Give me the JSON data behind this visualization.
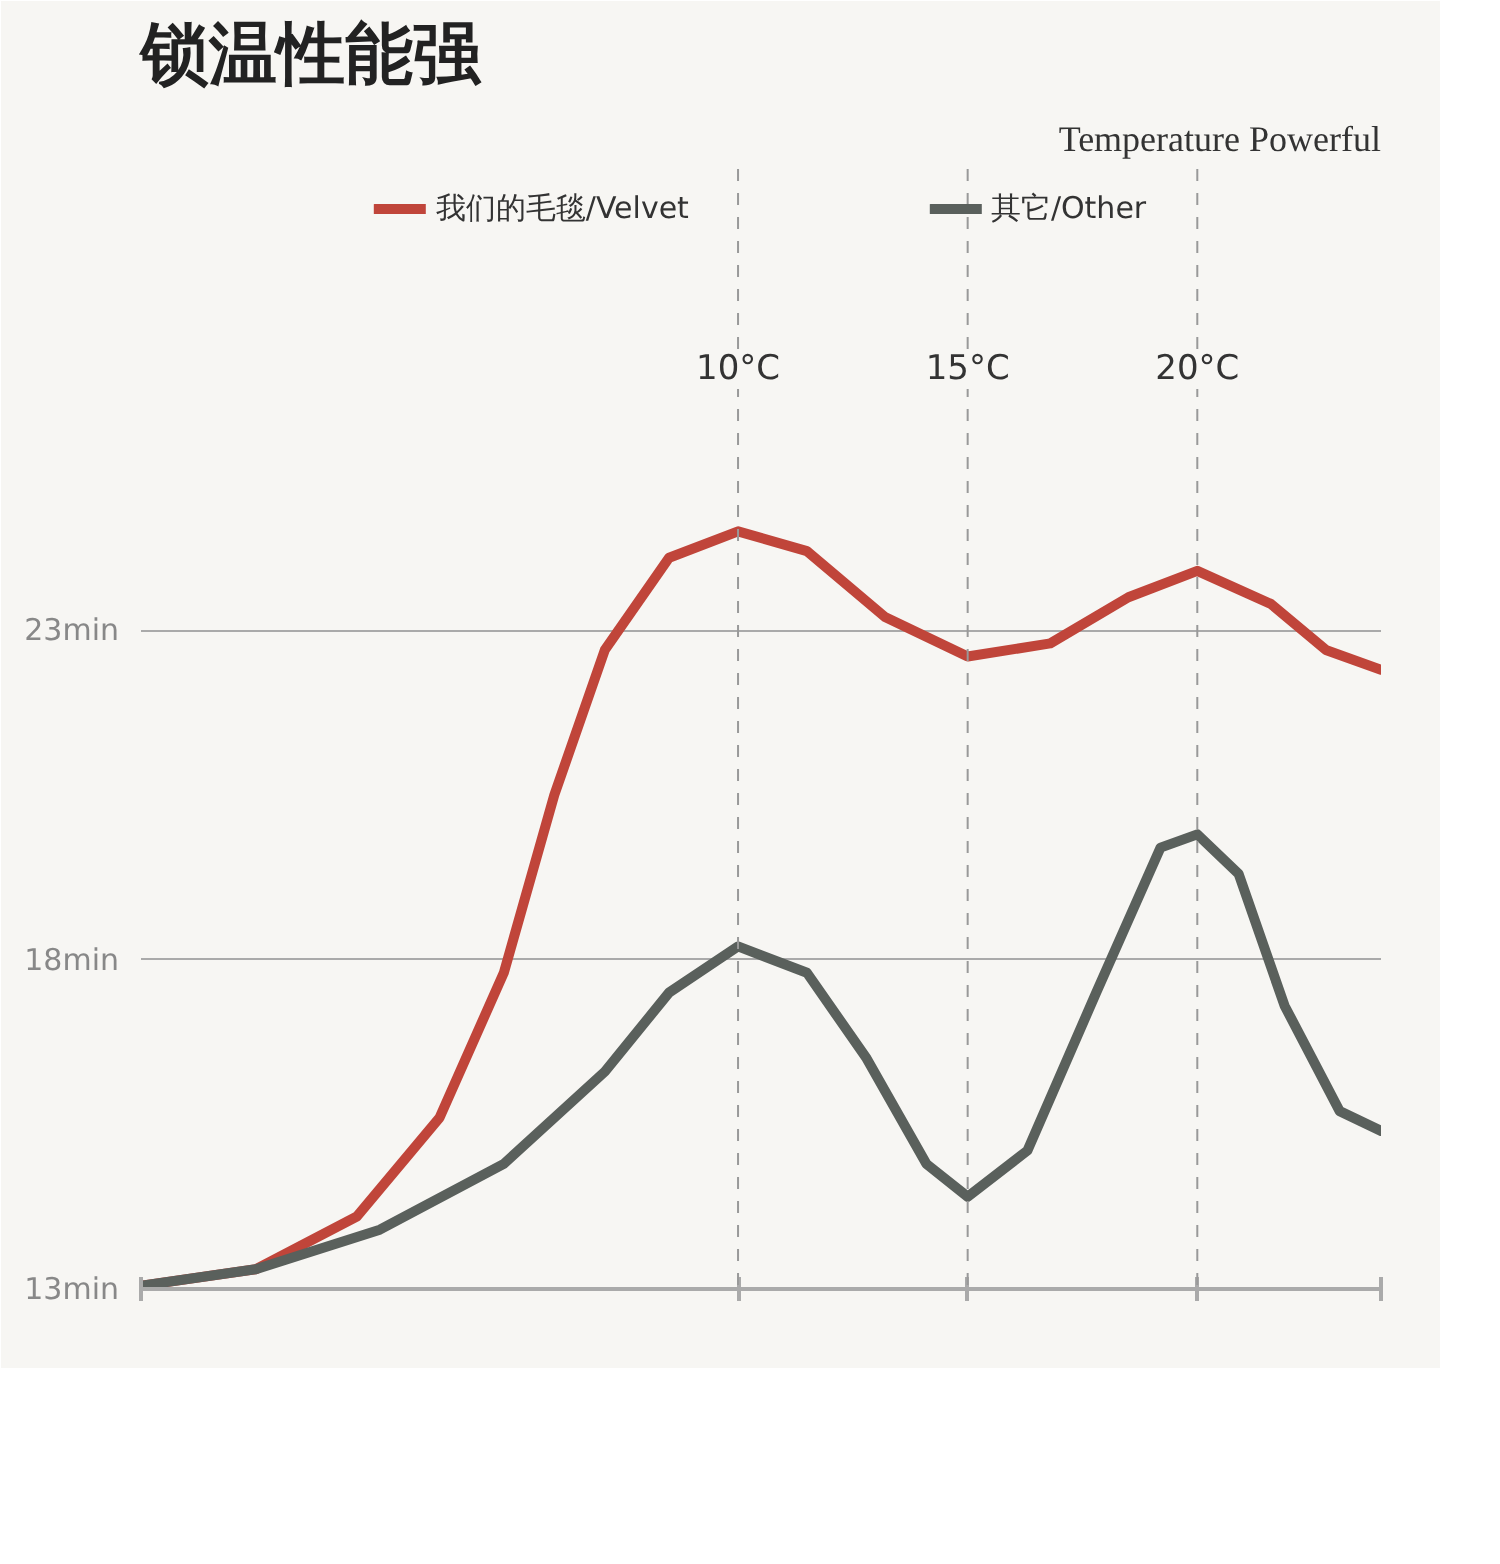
{
  "chart_data": {
    "type": "line",
    "title": "锁温性能强",
    "subtitle": "Temperature Powerful",
    "xlim": [
      -3,
      24
    ],
    "xticks": [
      {
        "value": -3,
        "label": null
      },
      {
        "value": 10,
        "label": null
      },
      {
        "value": 15,
        "label": null
      },
      {
        "value": 20,
        "label": null
      },
      {
        "value": 24,
        "label": null
      }
    ],
    "ylim": [
      13,
      30
    ],
    "yticks": [
      {
        "value": 13,
        "label": "13min"
      },
      {
        "value": 18,
        "label": "18min"
      },
      {
        "value": 23,
        "label": "23min"
      }
    ],
    "tick_labels": "y",
    "grid": "y",
    "legend": "top",
    "marker": "none",
    "line_style": "solid",
    "ref_lines": [
      {
        "axis": "x",
        "value": 10,
        "label": "10°C",
        "line_style": "dashed",
        "color": "#999999"
      },
      {
        "axis": "x",
        "value": 15,
        "label": "15°C",
        "line_style": "dashed",
        "color": "#999999"
      },
      {
        "axis": "x",
        "value": 20,
        "label": "20°C",
        "line_style": "dashed",
        "color": "#999999"
      }
    ],
    "series": [
      {
        "name": "我们的毛毯/Velvet",
        "color": "#c0453a",
        "x": [
          -3,
          -0.5,
          1.7,
          3.5,
          4.9,
          6.0,
          7.1,
          8.5,
          10,
          11.5,
          13.2,
          15,
          16.8,
          18.5,
          20,
          21.6,
          22.8,
          24
        ],
        "values": [
          13.05,
          13.3,
          14.1,
          15.6,
          17.8,
          20.5,
          22.7,
          24.1,
          24.5,
          24.2,
          23.2,
          22.6,
          22.8,
          23.5,
          23.9,
          23.4,
          22.7,
          22.4
        ]
      },
      {
        "name": "其它/Other",
        "color": "#5a605c",
        "x": [
          -3,
          -0.5,
          2.2,
          4.9,
          7.1,
          8.5,
          10,
          11.5,
          12.8,
          14.1,
          15,
          16.3,
          17.8,
          19.2,
          20,
          20.9,
          21.9,
          23.1,
          24
        ],
        "values": [
          13.05,
          13.3,
          13.9,
          14.9,
          16.3,
          17.5,
          18.2,
          17.8,
          16.5,
          14.9,
          14.4,
          15.1,
          17.5,
          19.7,
          19.9,
          19.3,
          17.3,
          15.7,
          15.4
        ]
      }
    ]
  }
}
